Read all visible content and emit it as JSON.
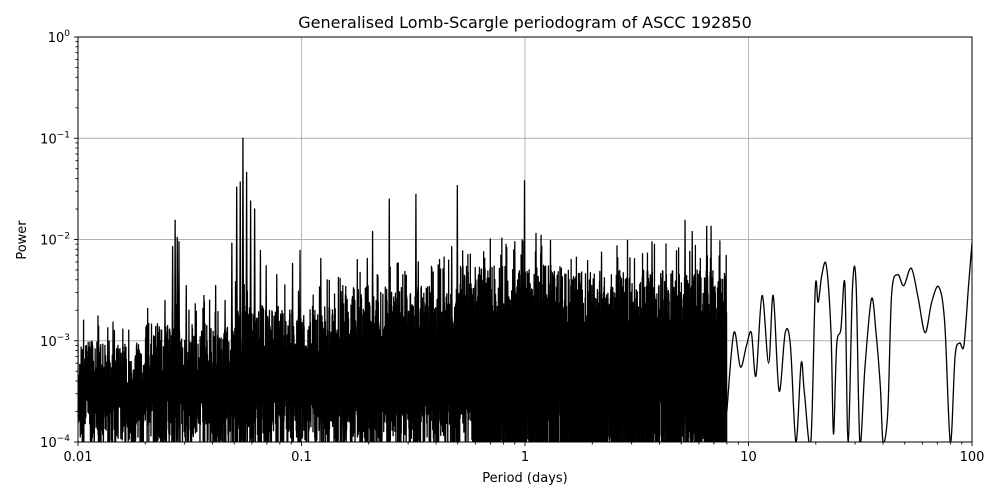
{
  "chart_data": {
    "type": "line",
    "title": "Generalised Lomb-Scargle periodogram of ASCC 192850",
    "xlabel": "Period (days)",
    "ylabel": "Power",
    "xscale": "log",
    "yscale": "log",
    "xlim": [
      0.01,
      100
    ],
    "ylim": [
      0.0001,
      1
    ],
    "grid": true,
    "legend": null,
    "line_color": "#000000",
    "grid_color": "#b0b0b0",
    "x_ticks": [
      {
        "value": 0.01,
        "label": "0.01"
      },
      {
        "value": 0.1,
        "label": "0.1"
      },
      {
        "value": 1,
        "label": "1"
      },
      {
        "value": 10,
        "label": "10"
      },
      {
        "value": 100,
        "label": "100"
      }
    ],
    "y_ticks": [
      {
        "value": 0.0001,
        "base": "10",
        "exp": "−4"
      },
      {
        "value": 0.001,
        "base": "10",
        "exp": "−3"
      },
      {
        "value": 0.01,
        "base": "10",
        "exp": "−2"
      },
      {
        "value": 0.1,
        "base": "10",
        "exp": "−1"
      },
      {
        "value": 1,
        "base": "10",
        "exp": "0"
      }
    ],
    "notable_peaks": [
      {
        "period": 0.0245,
        "power": 0.0025
      },
      {
        "period": 0.0265,
        "power": 0.0085
      },
      {
        "period": 0.0272,
        "power": 0.0155
      },
      {
        "period": 0.0278,
        "power": 0.0105
      },
      {
        "period": 0.0283,
        "power": 0.0095
      },
      {
        "period": 0.0305,
        "power": 0.0035
      },
      {
        "period": 0.0366,
        "power": 0.0028
      },
      {
        "period": 0.0413,
        "power": 0.0035
      },
      {
        "period": 0.0455,
        "power": 0.0025
      },
      {
        "period": 0.0488,
        "power": 0.0092
      },
      {
        "period": 0.0513,
        "power": 0.033
      },
      {
        "period": 0.0532,
        "power": 0.037
      },
      {
        "period": 0.0547,
        "power": 0.1
      },
      {
        "period": 0.0568,
        "power": 0.046
      },
      {
        "period": 0.0592,
        "power": 0.024
      },
      {
        "period": 0.0617,
        "power": 0.02
      },
      {
        "period": 0.0655,
        "power": 0.0078
      },
      {
        "period": 0.0695,
        "power": 0.0055
      },
      {
        "period": 0.0775,
        "power": 0.0045
      },
      {
        "period": 0.0912,
        "power": 0.0058
      },
      {
        "period": 0.0985,
        "power": 0.0078
      },
      {
        "period": 0.122,
        "power": 0.0065
      },
      {
        "period": 0.153,
        "power": 0.0035
      },
      {
        "period": 0.197,
        "power": 0.0065
      },
      {
        "period": 0.208,
        "power": 0.012
      },
      {
        "period": 0.247,
        "power": 0.025
      },
      {
        "period": 0.325,
        "power": 0.028
      },
      {
        "period": 0.333,
        "power": 0.006
      },
      {
        "period": 0.47,
        "power": 0.0085
      },
      {
        "period": 0.498,
        "power": 0.034
      },
      {
        "period": 0.66,
        "power": 0.0065
      },
      {
        "period": 0.9,
        "power": 0.0095
      },
      {
        "period": 0.995,
        "power": 0.038
      },
      {
        "period": 1.12,
        "power": 0.0115
      },
      {
        "period": 1.18,
        "power": 0.011
      },
      {
        "period": 1.3,
        "power": 0.0098
      },
      {
        "period": 2.2,
        "power": 0.0075
      },
      {
        "period": 2.6,
        "power": 0.0066
      },
      {
        "period": 3.7,
        "power": 0.0095
      },
      {
        "period": 5.2,
        "power": 0.0155
      },
      {
        "period": 5.6,
        "power": 0.012
      },
      {
        "period": 6.5,
        "power": 0.0135
      },
      {
        "period": 6.8,
        "power": 0.0135
      }
    ],
    "long_period_curve": [
      {
        "period": 8.0,
        "power": 0.0002
      },
      {
        "period": 8.6,
        "power": 0.0012
      },
      {
        "period": 9.2,
        "power": 0.00055
      },
      {
        "period": 9.8,
        "power": 0.0009
      },
      {
        "period": 10.3,
        "power": 0.0012
      },
      {
        "period": 10.8,
        "power": 0.00045
      },
      {
        "period": 11.5,
        "power": 0.0028
      },
      {
        "period": 12.3,
        "power": 0.0006
      },
      {
        "period": 12.9,
        "power": 0.0028
      },
      {
        "period": 13.7,
        "power": 0.00032
      },
      {
        "period": 14.6,
        "power": 0.0012
      },
      {
        "period": 15.4,
        "power": 0.0009
      },
      {
        "period": 16.3,
        "power": 0.0001
      },
      {
        "period": 17.2,
        "power": 0.0006
      },
      {
        "period": 17.8,
        "power": 0.0003
      },
      {
        "period": 19.0,
        "power": 0.0001
      },
      {
        "period": 19.9,
        "power": 0.0033
      },
      {
        "period": 20.5,
        "power": 0.0024
      },
      {
        "period": 21.3,
        "power": 0.0045
      },
      {
        "period": 22.3,
        "power": 0.0055
      },
      {
        "period": 23.4,
        "power": 0.0012
      },
      {
        "period": 24.0,
        "power": 0.00012
      },
      {
        "period": 24.8,
        "power": 0.0009
      },
      {
        "period": 25.9,
        "power": 0.0013
      },
      {
        "period": 27.0,
        "power": 0.0036
      },
      {
        "period": 27.9,
        "power": 0.0001
      },
      {
        "period": 29.2,
        "power": 0.0034
      },
      {
        "period": 30.3,
        "power": 0.0036
      },
      {
        "period": 31.5,
        "power": 0.0001
      },
      {
        "period": 33.2,
        "power": 0.00055
      },
      {
        "period": 35.5,
        "power": 0.0026
      },
      {
        "period": 37.2,
        "power": 0.0012
      },
      {
        "period": 38.9,
        "power": 0.00035
      },
      {
        "period": 40.0,
        "power": 0.0001
      },
      {
        "period": 42.0,
        "power": 0.0002
      },
      {
        "period": 43.7,
        "power": 0.0029
      },
      {
        "period": 46.5,
        "power": 0.0045
      },
      {
        "period": 49.5,
        "power": 0.0035
      },
      {
        "period": 53.5,
        "power": 0.0052
      },
      {
        "period": 57.5,
        "power": 0.0026
      },
      {
        "period": 61.7,
        "power": 0.0012
      },
      {
        "period": 66.0,
        "power": 0.0024
      },
      {
        "period": 71.0,
        "power": 0.0034
      },
      {
        "period": 75.5,
        "power": 0.0015
      },
      {
        "period": 80.0,
        "power": 0.0001
      },
      {
        "period": 84.0,
        "power": 0.0007
      },
      {
        "period": 88.0,
        "power": 0.00095
      },
      {
        "period": 92.0,
        "power": 0.0009
      },
      {
        "period": 96.5,
        "power": 0.0035
      },
      {
        "period": 100.0,
        "power": 0.0092
      }
    ],
    "noise_floor": {
      "description": "dense oscillating noise between 1e-4 and envelope",
      "segments": [
        {
          "from": 0.01,
          "to": 0.02,
          "envelope": 0.0008
        },
        {
          "from": 0.02,
          "to": 0.05,
          "envelope": 0.0012
        },
        {
          "from": 0.05,
          "to": 0.15,
          "envelope": 0.0018
        },
        {
          "from": 0.15,
          "to": 0.5,
          "envelope": 0.0028
        },
        {
          "from": 0.5,
          "to": 1.5,
          "envelope": 0.0045
        },
        {
          "from": 1.5,
          "to": 8.0,
          "envelope": 0.004
        }
      ]
    }
  }
}
